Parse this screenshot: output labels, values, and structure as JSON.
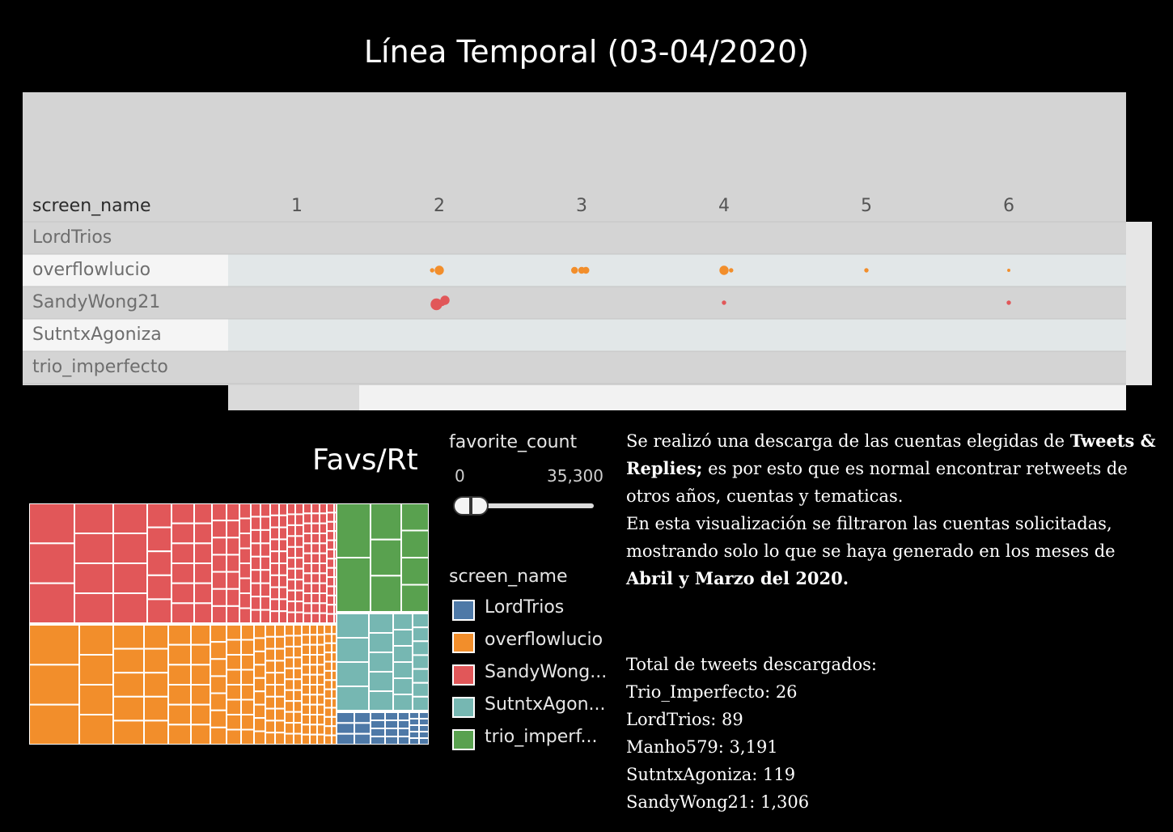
{
  "title": "Línea Temporal (03-04/2020)",
  "timeline": {
    "row_header": "screen_name",
    "columns": [
      "1",
      "2",
      "3",
      "4",
      "5",
      "6"
    ],
    "rows": [
      "LordTrios",
      "overflowlucio",
      "SandyWong21",
      "SutntxAgoniza",
      "trio_imperfecto"
    ]
  },
  "colors": {
    "LordTrios": "#4e79a7",
    "overflowlucio": "#f28e2b",
    "SandyWong21": "#e15759",
    "SutntxAgoniza": "#76b7b2",
    "trio_imperfecto": "#59a14f"
  },
  "chart_data": [
    {
      "type": "scatter",
      "title": "Línea Temporal (03-04/2020)",
      "xlabel": "",
      "ylabel": "screen_name",
      "x_categories": [
        "1",
        "2",
        "3",
        "4",
        "5",
        "6"
      ],
      "y_categories": [
        "LordTrios",
        "overflowlucio",
        "SandyWong21",
        "SutntxAgoniza",
        "trio_imperfecto"
      ],
      "points": [
        {
          "series": "overflowlucio",
          "x": 2,
          "row": "overflowlucio",
          "size": 3
        },
        {
          "series": "overflowlucio",
          "x": 1.95,
          "row": "overflowlucio",
          "size": 1
        },
        {
          "series": "overflowlucio",
          "x": 2.95,
          "row": "overflowlucio",
          "size": 2
        },
        {
          "series": "overflowlucio",
          "x": 3.0,
          "row": "overflowlucio",
          "size": 2
        },
        {
          "series": "overflowlucio",
          "x": 3.03,
          "row": "overflowlucio",
          "size": 2
        },
        {
          "series": "overflowlucio",
          "x": 4.0,
          "row": "overflowlucio",
          "size": 3
        },
        {
          "series": "overflowlucio",
          "x": 4.05,
          "row": "overflowlucio",
          "size": 1
        },
        {
          "series": "overflowlucio",
          "x": 5.0,
          "row": "overflowlucio",
          "size": 1
        },
        {
          "series": "overflowlucio",
          "x": 6.0,
          "row": "overflowlucio",
          "size": 0.5
        },
        {
          "series": "SandyWong21",
          "x": 1.98,
          "row": "SandyWong21",
          "size": 4
        },
        {
          "series": "SandyWong21",
          "x": 2.04,
          "row": "SandyWong21",
          "size": 3
        },
        {
          "series": "SandyWong21",
          "x": 2.02,
          "row": "SandyWong21",
          "size": 2
        },
        {
          "series": "SandyWong21",
          "x": 4.0,
          "row": "SandyWong21",
          "size": 1
        },
        {
          "series": "SandyWong21",
          "x": 6.0,
          "row": "SandyWong21",
          "size": 1
        }
      ]
    },
    {
      "type": "treemap",
      "title": "Favs/Rt",
      "series": [
        {
          "name": "SandyWong21",
          "value": 1306
        },
        {
          "name": "overflowlucio",
          "value": 1300
        },
        {
          "name": "trio_imperfecto",
          "value": 26
        },
        {
          "name": "SutntxAgoniza",
          "value": 119
        },
        {
          "name": "LordTrios",
          "value": 89
        }
      ]
    }
  ],
  "treemap": {
    "title": "Favs/Rt"
  },
  "filter": {
    "title": "favorite_count",
    "min": "0",
    "max": "35,300",
    "low": 0,
    "high": 0.12
  },
  "legend": {
    "title": "screen_name",
    "items": [
      {
        "label": "LordTrios",
        "color": "#4e79a7"
      },
      {
        "label": "overflowlucio",
        "color": "#f28e2b"
      },
      {
        "label": "SandyWong...",
        "color": "#e15759"
      },
      {
        "label": "SutntxAgon...",
        "color": "#76b7b2"
      },
      {
        "label": "trio_imperf...",
        "color": "#59a14f"
      }
    ]
  },
  "note": {
    "p1_a": "Se realizó una descarga de las cuentas elegidas  de ",
    "p1_b": "Tweets & Replies;",
    "p1_c": " es por esto que es normal encontrar retweets de otros años, cuentas y tematicas.",
    "p2_a": "En esta visualización se filtraron las cuentas solicitadas, mostrando solo lo que se haya generado en los meses de ",
    "p2_b": "Abril y Marzo del 2020."
  },
  "totals": {
    "heading": "Total de tweets descargados:",
    "lines": [
      "Trio_Imperfecto: 26",
      "LordTrios: 89",
      "Manho579: 3,191",
      "SutntxAgoniza: 119",
      "SandyWong21: 1,306"
    ]
  }
}
